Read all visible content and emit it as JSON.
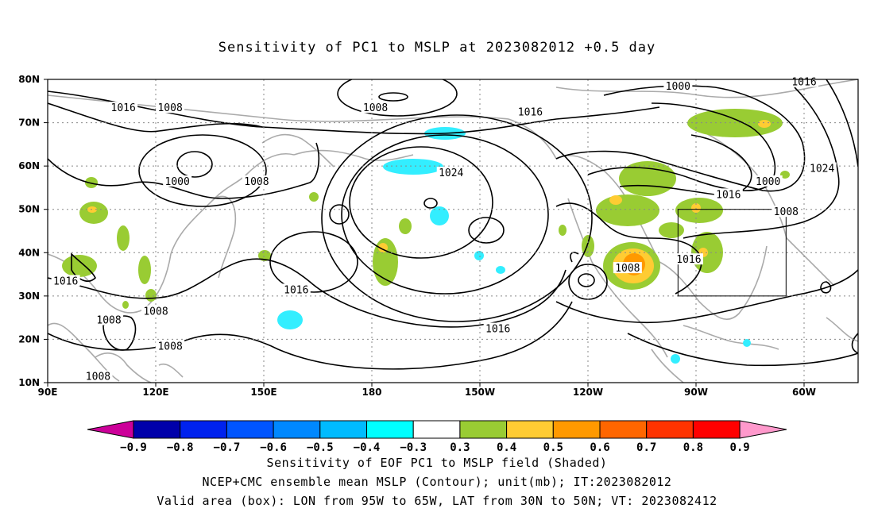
{
  "title": "Sensitivity of PC1 to MSLP at 2023082012 +0.5 day",
  "map": {
    "lat_labels": [
      "80N",
      "70N",
      "60N",
      "50N",
      "40N",
      "30N",
      "20N",
      "10N"
    ],
    "lon_labels": [
      "90E",
      "120E",
      "150E",
      "180",
      "150W",
      "120W",
      "90W",
      "60W"
    ],
    "contour_labels": [
      {
        "text": "1016",
        "lon": 111,
        "lat": 73
      },
      {
        "text": "1008",
        "lon": 124,
        "lat": 73
      },
      {
        "text": "1008",
        "lon": 181,
        "lat": 73
      },
      {
        "text": "1016",
        "lon": 224,
        "lat": 72
      },
      {
        "text": "1000",
        "lon": 265,
        "lat": 78
      },
      {
        "text": "1016",
        "lon": 300,
        "lat": 79
      },
      {
        "text": "1000",
        "lon": 126,
        "lat": 56
      },
      {
        "text": "1008",
        "lon": 148,
        "lat": 56
      },
      {
        "text": "1024",
        "lon": 202,
        "lat": 58
      },
      {
        "text": "1016",
        "lon": 279,
        "lat": 53
      },
      {
        "text": "1000",
        "lon": 290,
        "lat": 56
      },
      {
        "text": "1024",
        "lon": 305,
        "lat": 59
      },
      {
        "text": "1008",
        "lon": 295,
        "lat": 49
      },
      {
        "text": "1016",
        "lon": 268,
        "lat": 38
      },
      {
        "text": "1008",
        "lon": 251,
        "lat": 36
      },
      {
        "text": "1016",
        "lon": 95,
        "lat": 33
      },
      {
        "text": "1016",
        "lon": 159,
        "lat": 31
      },
      {
        "text": "1008",
        "lon": 120,
        "lat": 26
      },
      {
        "text": "1008",
        "lon": 107,
        "lat": 24
      },
      {
        "text": "1016",
        "lon": 215,
        "lat": 22
      },
      {
        "text": "1008",
        "lon": 124,
        "lat": 18
      },
      {
        "text": "1008",
        "lon": 104,
        "lat": 11
      }
    ],
    "valid_box": {
      "lon_min": 265,
      "lon_max": 295,
      "lat_min": 30,
      "lat_max": 50
    },
    "colors": {
      "green": "#99cc33",
      "yellow": "#ffcc33",
      "orange": "#ff9900",
      "cyan": "#33eeff",
      "coast": "#aaaaaa"
    }
  },
  "colorbar": {
    "labels": [
      "-0.9",
      "-0.8",
      "-0.7",
      "-0.6",
      "-0.5",
      "-0.4",
      "-0.3",
      "0.3",
      "0.4",
      "0.5",
      "0.6",
      "0.7",
      "0.8",
      "0.9"
    ],
    "colors": [
      "#0000aa",
      "#0022ee",
      "#0055ff",
      "#0088ff",
      "#00bbff",
      "#00ffff",
      "#ffffff",
      "#99cc33",
      "#ffcc33",
      "#ff9900",
      "#ff6600",
      "#ff3300",
      "#ff0000"
    ],
    "low_end_color": "#cc0099",
    "high_end_color": "#ff99cc"
  },
  "footer": {
    "line1": "Sensitivity of EOF PC1 to MSLP field (Shaded)",
    "line2": "NCEP+CMC ensemble mean MSLP (Contour); unit(mb); IT:2023082012",
    "line3": "Valid area (box): LON from 95W to 65W, LAT from 30N to 50N; VT: 2023082412"
  }
}
